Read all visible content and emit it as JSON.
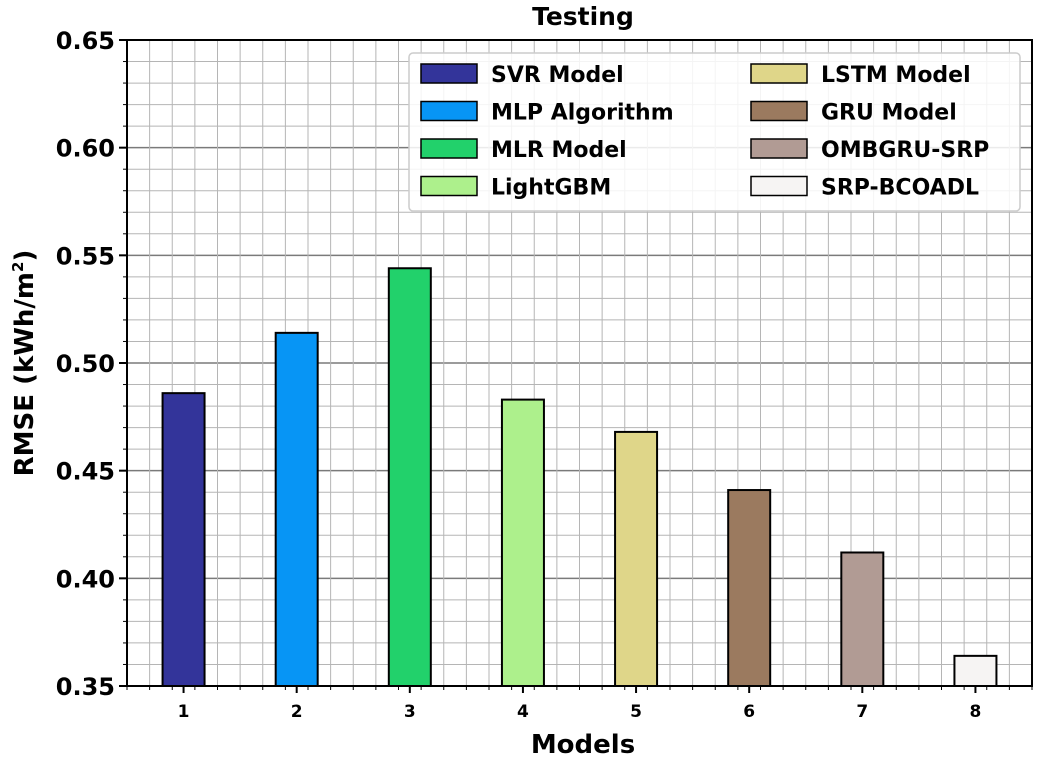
{
  "chart_data": {
    "type": "bar",
    "title": "Testing",
    "xlabel": "Models",
    "ylabel": "RMSE (kWh/m",
    "ylabel_sup": "2",
    "ylabel_end": ")",
    "categories": [
      "1",
      "2",
      "3",
      "4",
      "5",
      "6",
      "7",
      "8"
    ],
    "series_names": [
      "SVR Model",
      "MLP Algorithm",
      "MLR Model",
      "LightGBM",
      "LSTM Model",
      "GRU Model",
      "OMBGRU-SRP",
      "SRP-BCOADL"
    ],
    "values": [
      0.486,
      0.514,
      0.544,
      0.483,
      0.468,
      0.441,
      0.412,
      0.364
    ],
    "colors": [
      "#33349a",
      "#0795f5",
      "#22d16b",
      "#adf08c",
      "#dfd689",
      "#9b7a5f",
      "#b19b94",
      "#f6f4f3"
    ],
    "ylim": [
      0.35,
      0.65
    ],
    "yticks": [
      "0.35",
      "0.40",
      "0.45",
      "0.50",
      "0.55",
      "0.60",
      "0.65"
    ],
    "grid": true,
    "legend_position": "top-right"
  }
}
